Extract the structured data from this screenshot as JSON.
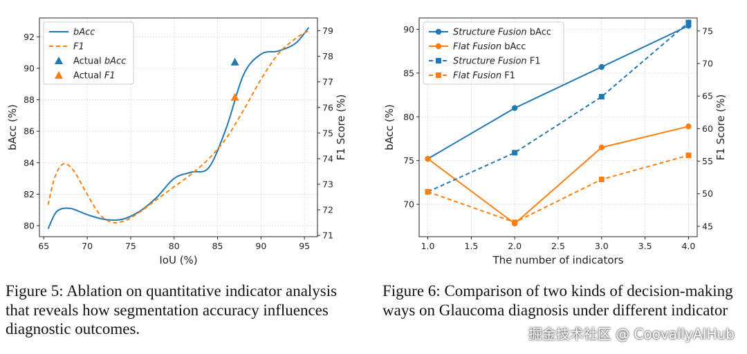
{
  "chart_data": [
    {
      "type": "line",
      "xlabel": "IoU (%)",
      "ylabel": "bAcc (%)",
      "y2label": "F1 Score (%)",
      "xlim": [
        64.5,
        96.5
      ],
      "ylim": [
        79.3,
        93.2
      ],
      "y2lim": [
        70.95,
        79.5
      ],
      "xticks": [
        65,
        70,
        75,
        80,
        85,
        90,
        95
      ],
      "yticks": [
        80,
        82,
        84,
        86,
        88,
        90,
        92
      ],
      "y2ticks": [
        71,
        72,
        73,
        74,
        75,
        76,
        77,
        78,
        79
      ],
      "grid": true,
      "legend_position": "top-left",
      "series": [
        {
          "name": "bAcc",
          "axis": "left",
          "style": "solid",
          "color": "#1f77b4",
          "x": [
            65.5,
            66.5,
            68,
            70,
            72,
            74,
            76,
            78,
            80,
            82,
            84,
            86,
            88,
            90,
            92,
            94,
            95.5
          ],
          "y": [
            79.8,
            80.9,
            81.1,
            80.7,
            80.4,
            80.4,
            80.9,
            81.8,
            83.0,
            83.4,
            83.7,
            86.2,
            89.6,
            90.9,
            91.1,
            91.6,
            92.6
          ]
        },
        {
          "name": "F1",
          "axis": "right",
          "style": "dashed",
          "color": "#ff7f0e",
          "x": [
            65.5,
            66.3,
            67.3,
            68.5,
            70,
            71.5,
            73,
            74.5,
            76,
            78,
            80,
            82,
            84,
            86,
            88,
            90,
            92,
            94,
            95.5
          ],
          "y": [
            72.2,
            73.3,
            73.8,
            73.5,
            72.6,
            71.8,
            71.5,
            71.6,
            71.9,
            72.4,
            72.9,
            73.4,
            74.0,
            74.8,
            75.9,
            77.1,
            78.1,
            78.7,
            79.0
          ]
        },
        {
          "name": "Actual bAcc",
          "axis": "left",
          "marker": "triangle",
          "color": "#1f77b4",
          "x": [
            87
          ],
          "y": [
            90.4
          ]
        },
        {
          "name": "Actual F1",
          "axis": "right",
          "marker": "triangle",
          "color": "#ff7f0e",
          "x": [
            87
          ],
          "y": [
            76.4
          ]
        }
      ],
      "legend": [
        {
          "label": "bAcc",
          "italic": true,
          "kind": "line-solid",
          "color": "#1f77b4"
        },
        {
          "label": "F1",
          "italic": true,
          "kind": "line-dashed",
          "color": "#ff7f0e"
        },
        {
          "label_plain": "Actual ",
          "label_italic": "bAcc",
          "kind": "triangle",
          "color": "#1f77b4"
        },
        {
          "label_plain": "Actual ",
          "label_italic": "F1",
          "kind": "triangle",
          "color": "#ff7f0e"
        }
      ]
    },
    {
      "type": "line",
      "xlabel": "The number of indicators",
      "ylabel": "bAcc (%)",
      "y2label": "F1 Score (%)",
      "xlim": [
        0.9,
        4.1
      ],
      "ylim": [
        66.3,
        91.3
      ],
      "y2lim": [
        43.4,
        77.0
      ],
      "xticks": [
        1.0,
        1.5,
        2.0,
        2.5,
        3.0,
        3.5,
        4.0
      ],
      "yticks": [
        70,
        75,
        80,
        85,
        90
      ],
      "y2ticks": [
        45,
        50,
        55,
        60,
        65,
        70,
        75
      ],
      "grid": true,
      "legend_position": "top-left",
      "series": [
        {
          "name": "Structure Fusion bAcc",
          "axis": "left",
          "style": "solid",
          "marker": "circle",
          "color": "#1f77b4",
          "x": [
            1,
            2,
            3,
            4
          ],
          "y": [
            75.2,
            81.0,
            85.7,
            90.4
          ]
        },
        {
          "name": "Flat Fusion bAcc",
          "axis": "left",
          "style": "solid",
          "marker": "circle",
          "color": "#ff7f0e",
          "x": [
            1,
            2,
            3,
            4
          ],
          "y": [
            75.2,
            67.8,
            76.5,
            78.9
          ]
        },
        {
          "name": "Structure Fusion F1",
          "axis": "right",
          "style": "dashed",
          "marker": "square",
          "color": "#1f77b4",
          "x": [
            1,
            2,
            3,
            4
          ],
          "y": [
            50.3,
            56.3,
            64.9,
            76.3
          ]
        },
        {
          "name": "Flat Fusion F1",
          "axis": "right",
          "style": "dashed",
          "marker": "square",
          "color": "#ff7f0e",
          "x": [
            1,
            2,
            3,
            4
          ],
          "y": [
            50.3,
            45.6,
            52.2,
            55.9
          ]
        }
      ],
      "legend": [
        {
          "label_italic": "Structure Fusion",
          "label_plain": " bAcc",
          "kind": "solid-circle",
          "color": "#1f77b4"
        },
        {
          "label_italic": "Flat Fusion",
          "label_plain": " bAcc",
          "kind": "solid-circle",
          "color": "#ff7f0e"
        },
        {
          "label_italic": "Structure Fusion",
          "label_plain": " F1",
          "kind": "dashed-square",
          "color": "#1f77b4"
        },
        {
          "label_italic": "Flat Fusion",
          "label_plain": " F1",
          "kind": "dashed-square",
          "color": "#ff7f0e"
        }
      ]
    }
  ],
  "captions": {
    "fig5": "Figure 5: Ablation on quantitative indicator analysis that reveals how segmentation accuracy influences diagnostic outcomes.",
    "fig6": "Figure 6: Comparison of two kinds of decision-making ways on Glaucoma diagnosis under different indicator"
  },
  "watermark": "掘金技术社区 @ CoovallyAIHub"
}
